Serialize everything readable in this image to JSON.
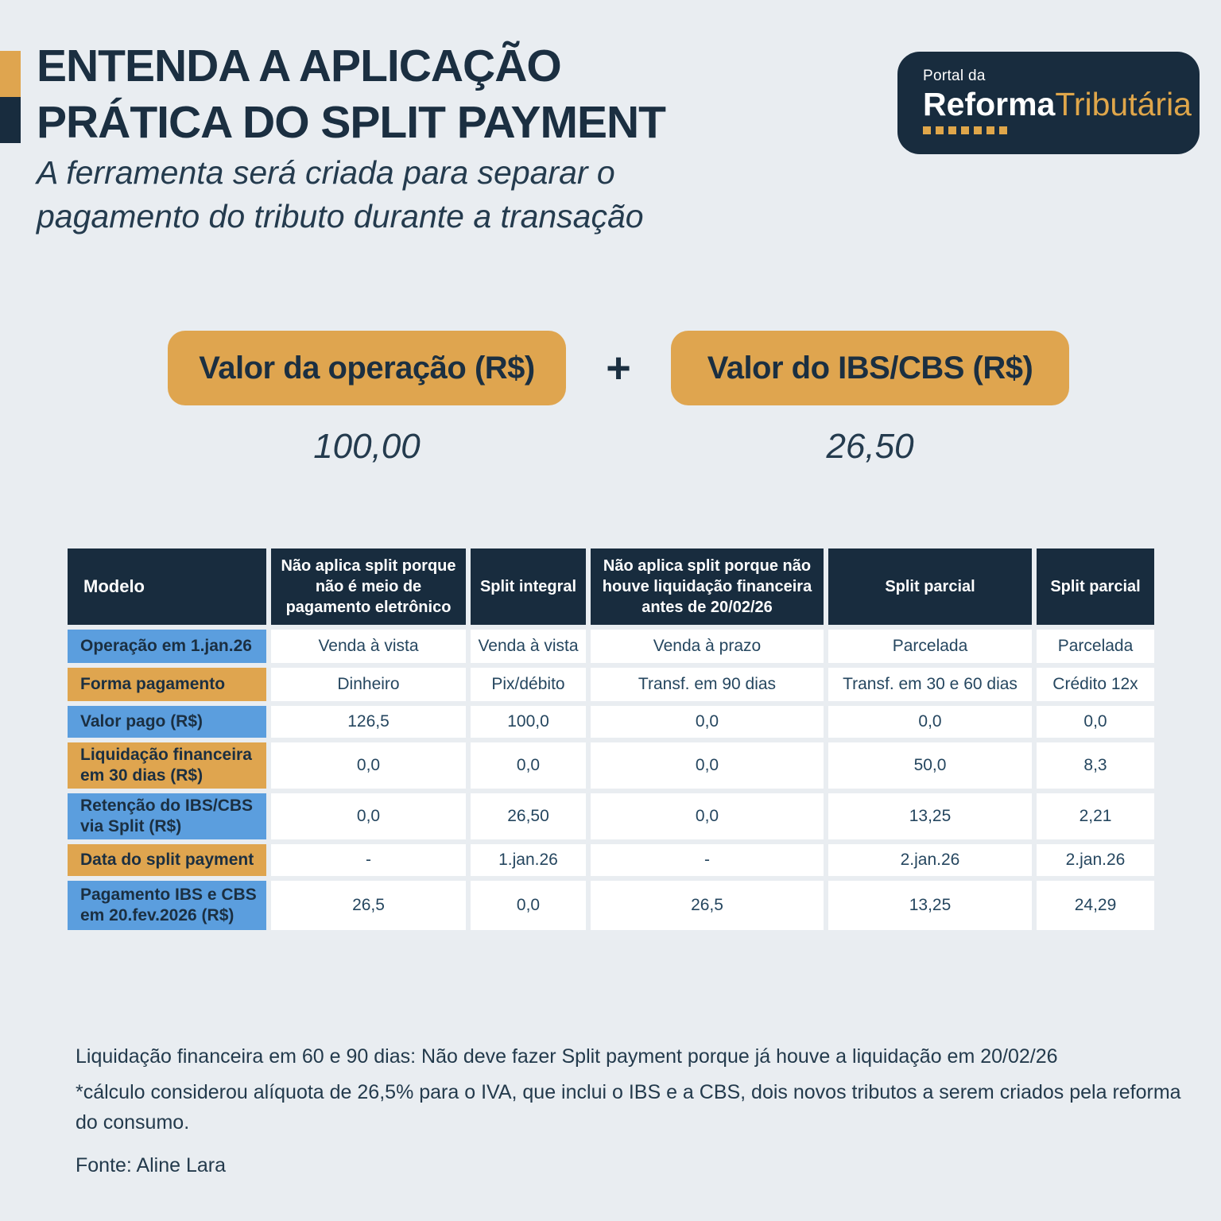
{
  "header": {
    "title_line1": "ENTENDA A APLICAÇÃO",
    "title_line2": "PRÁTICA DO SPLIT PAYMENT",
    "subtitle_line1": "A ferramenta será criada para separar o",
    "subtitle_line2": "pagamento do tributo durante a transação"
  },
  "logo": {
    "top": "Portal da",
    "bold": "Reforma",
    "light": "Tributária"
  },
  "sum": {
    "left_label": "Valor da operação (R$)",
    "left_value": "100,00",
    "plus": "+",
    "right_label": "Valor do IBS/CBS (R$)",
    "right_value": "26,50"
  },
  "table": {
    "corner": "Modelo",
    "columns": [
      "Não aplica split porque não é meio de pagamento eletrônico",
      "Split integral",
      "Não aplica split porque não houve liquidação financeira antes de 20/02/26",
      "Split parcial",
      "Split parcial"
    ],
    "rows": [
      {
        "label": "Operação em 1.jan.26",
        "values": [
          "Venda à vista",
          "Venda à vista",
          "Venda à prazo",
          "Parcelada",
          "Parcelada"
        ]
      },
      {
        "label": "Forma pagamento",
        "values": [
          "Dinheiro",
          "Pix/débito",
          "Transf. em 90 dias",
          "Transf. em 30 e 60 dias",
          "Crédito 12x"
        ]
      },
      {
        "label": "Valor pago (R$)",
        "values": [
          "126,5",
          "100,0",
          "0,0",
          "0,0",
          "0,0"
        ]
      },
      {
        "label": "Liquidação financeira em 30 dias (R$)",
        "values": [
          "0,0",
          "0,0",
          "0,0",
          "50,0",
          "8,3"
        ]
      },
      {
        "label": "Retenção do IBS/CBS via Split (R$)",
        "values": [
          "0,0",
          "26,50",
          "0,0",
          "13,25",
          "2,21"
        ]
      },
      {
        "label": "Data do split payment",
        "values": [
          "-",
          "1.jan.26",
          "-",
          "2.jan.26",
          "2.jan.26"
        ]
      },
      {
        "label": "Pagamento IBS e CBS em 20.fev.2026 (R$)",
        "values": [
          "26,5",
          "0,0",
          "26,5",
          "13,25",
          "24,29"
        ]
      }
    ]
  },
  "footer": {
    "note1": "Liquidação financeira em 60 e 90 dias: Não deve fazer Split payment porque já houve a liquidação em 20/02/26",
    "note2": "*cálculo considerou alíquota de 26,5% para o IVA, que inclui o IBS e a CBS, dois novos tributos a serem criados pela reforma do consumo.",
    "source": "Fonte: Aline Lara"
  },
  "colors": {
    "background": "#e9edf1",
    "navy": "#182c3e",
    "gold": "#dfa54f",
    "blue": "#5b9ede",
    "white": "#ffffff"
  }
}
